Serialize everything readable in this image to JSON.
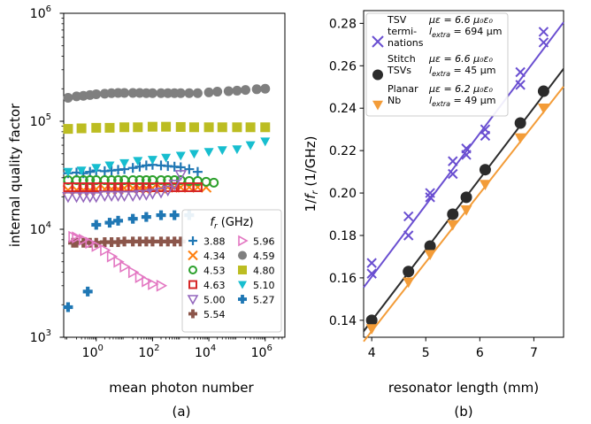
{
  "chart_data": [
    {
      "type": "scatter",
      "panel_label": "(a)",
      "xlabel": "mean photon number",
      "ylabel": "internal quality factor",
      "xscale": "log",
      "yscale": "log",
      "xlim": [
        0.07,
        5000000
      ],
      "ylim": [
        1000,
        1000000
      ],
      "x_ticks": [
        {
          "value": 1,
          "base": "10",
          "exp": "0"
        },
        {
          "value": 100,
          "base": "10",
          "exp": "2"
        },
        {
          "value": 10000,
          "base": "10",
          "exp": "4"
        },
        {
          "value": 1000000,
          "base": "10",
          "exp": "6"
        }
      ],
      "y_ticks": [
        {
          "value": 1000,
          "base": "10",
          "exp": "3"
        },
        {
          "value": 10000,
          "base": "10",
          "exp": "4"
        },
        {
          "value": 100000,
          "base": "10",
          "exp": "5"
        },
        {
          "value": 1000000,
          "base": "10",
          "exp": "6"
        }
      ],
      "legend": {
        "title_main": "f",
        "title_sub": "r",
        "title_rest": " (GHz)",
        "placement": "lower-right",
        "columns": 2
      },
      "series": [
        {
          "name": "3.88",
          "marker": "plus",
          "color": "#1f77b4",
          "x": [
            0.1,
            0.2,
            0.35,
            0.6,
            1,
            2,
            3.5,
            6,
            10,
            20,
            35,
            60,
            100,
            200,
            350,
            600,
            1000,
            2000,
            4000
          ],
          "y": [
            33000,
            33500,
            33000,
            34000,
            35000,
            34500,
            35000,
            35500,
            36000,
            37000,
            38000,
            39000,
            39500,
            39000,
            38500,
            38000,
            37500,
            36000,
            34000
          ]
        },
        {
          "name": "4.34",
          "marker": "x",
          "color": "#ff7f0e",
          "x": [
            0.1,
            0.2,
            0.35,
            0.6,
            1,
            2,
            3.5,
            6,
            10,
            20,
            35,
            60,
            100,
            200,
            350,
            600,
            1000,
            2000,
            4000,
            8000
          ],
          "y": [
            23000,
            23000,
            23000,
            23000,
            23500,
            23500,
            23500,
            23500,
            24000,
            24000,
            24000,
            24000,
            24000,
            24000,
            24500,
            24500,
            24500,
            24500,
            24500,
            24500
          ]
        },
        {
          "name": "4.53",
          "marker": "circle-open",
          "color": "#2ca02c",
          "x": [
            0.1,
            0.2,
            0.35,
            0.6,
            1,
            2,
            3.5,
            6,
            10,
            20,
            35,
            60,
            100,
            200,
            350,
            600,
            1000,
            2000,
            4000,
            8000,
            15000
          ],
          "y": [
            28500,
            28500,
            28500,
            28500,
            28500,
            28500,
            28500,
            28500,
            28500,
            28500,
            28500,
            28500,
            28500,
            28500,
            28500,
            28500,
            28500,
            28000,
            28000,
            27500,
            27000
          ]
        },
        {
          "name": "4.59",
          "marker": "circle",
          "color": "#7f7f7f",
          "x": [
            0.1,
            0.2,
            0.35,
            0.6,
            1,
            2,
            3.5,
            6,
            10,
            20,
            35,
            60,
            100,
            200,
            350,
            600,
            1000,
            2000,
            4000,
            10000,
            20000,
            50000,
            100000,
            200000,
            500000,
            1000000
          ],
          "y": [
            165000,
            170000,
            172000,
            175000,
            178000,
            180000,
            182000,
            183000,
            183000,
            183000,
            183000,
            182000,
            182000,
            182000,
            182000,
            182000,
            182000,
            182000,
            182000,
            185000,
            188000,
            190000,
            192000,
            195000,
            198000,
            200000
          ]
        },
        {
          "name": "4.63",
          "marker": "square-open",
          "color": "#d62728",
          "x": [
            0.1,
            0.2,
            0.35,
            0.6,
            1,
            2,
            3.5,
            6,
            10,
            20,
            35,
            60,
            100,
            200,
            350,
            600,
            1000,
            2000,
            4000
          ],
          "y": [
            24500,
            24500,
            24500,
            24500,
            24500,
            24500,
            24500,
            24500,
            24500,
            24500,
            24500,
            24500,
            24500,
            24500,
            24500,
            24500,
            24500,
            24500,
            24500
          ]
        },
        {
          "name": "4.80",
          "marker": "square",
          "color": "#bcbd22",
          "x": [
            0.1,
            0.3,
            1,
            3,
            10,
            30,
            100,
            300,
            1000,
            3000,
            10000,
            30000,
            100000,
            300000,
            1000000
          ],
          "y": [
            85000,
            86000,
            87000,
            87000,
            88000,
            88000,
            89000,
            89000,
            88500,
            88000,
            88000,
            88000,
            88000,
            88000,
            88000
          ]
        },
        {
          "name": "5.00",
          "marker": "triangle-down-open",
          "color": "#9467bd",
          "x": [
            0.1,
            0.2,
            0.35,
            0.6,
            1,
            2,
            3.5,
            6,
            10,
            20,
            35,
            60,
            100,
            200,
            350,
            600,
            1000
          ],
          "y": [
            20000,
            20000,
            20000,
            20000,
            20000,
            20500,
            20500,
            20500,
            20500,
            20500,
            21000,
            21000,
            21500,
            22000,
            23000,
            26000,
            32000
          ]
        },
        {
          "name": "5.10",
          "marker": "triangle-down",
          "color": "#17becf",
          "x": [
            0.1,
            0.3,
            1,
            3,
            10,
            30,
            100,
            300,
            1000,
            3000,
            10000,
            30000,
            100000,
            300000,
            1000000
          ],
          "y": [
            34000,
            35000,
            37000,
            39000,
            41000,
            43000,
            44000,
            46000,
            48000,
            50000,
            52000,
            54000,
            55000,
            60000,
            65000
          ]
        },
        {
          "name": "5.27",
          "marker": "plus-thick",
          "color": "#1f77b4",
          "x": [
            0.1,
            0.5,
            1,
            3,
            6,
            20,
            60,
            200,
            600,
            2000
          ],
          "y": [
            1900,
            2650,
            11000,
            11500,
            12000,
            12500,
            13000,
            13500,
            13500,
            13500
          ]
        },
        {
          "name": "5.54",
          "marker": "plus-thick",
          "color": "#8c564b",
          "x": [
            0.15,
            0.2,
            0.35,
            0.6,
            1,
            2,
            3.5,
            6,
            10,
            20,
            35,
            60,
            100,
            200,
            350,
            600,
            1000
          ],
          "y": [
            7500,
            7500,
            7500,
            7500,
            7500,
            7600,
            7600,
            7600,
            7700,
            7700,
            7700,
            7700,
            7700,
            7700,
            7700,
            7700,
            7700
          ]
        },
        {
          "name": "5.96",
          "marker": "triangle-right-open",
          "color": "#e377c2",
          "x": [
            0.15,
            0.2,
            0.35,
            0.6,
            1,
            2,
            3.5,
            6,
            10,
            20,
            35,
            60,
            100,
            200
          ],
          "y": [
            8500,
            8400,
            8000,
            7500,
            7000,
            6400,
            5600,
            5000,
            4500,
            4000,
            3600,
            3300,
            3100,
            3000
          ]
        }
      ]
    },
    {
      "type": "scatter",
      "panel_label": "(b)",
      "xlabel": "resonator length (mm)",
      "ylabel_main": "1/f",
      "ylabel_sub": "r",
      "ylabel_rest": " (1/GHz)",
      "xlim": [
        3.85,
        7.55
      ],
      "ylim": [
        0.132,
        0.286
      ],
      "x_ticks": [
        "4",
        "5",
        "6",
        "7"
      ],
      "y_ticks": [
        "0.14",
        "0.16",
        "0.18",
        "0.20",
        "0.22",
        "0.24",
        "0.26",
        "0.28"
      ],
      "legend": {
        "placement": "top-left"
      },
      "series": [
        {
          "name_lines": [
            "TSV",
            "termi-",
            "nations"
          ],
          "marker": "x",
          "color": "#6a4fd1",
          "ann1": "με = 6.6 μ₀ε₀",
          "ann2_main": "l",
          "ann2_sub": "extra",
          "ann2_rest": " = 694 μm",
          "x": [
            4.0,
            4.0,
            4.68,
            4.68,
            5.08,
            5.08,
            5.5,
            5.5,
            5.75,
            5.75,
            6.1,
            6.1,
            6.75,
            6.75,
            7.18,
            7.18
          ],
          "y": [
            0.162,
            0.167,
            0.18,
            0.189,
            0.198,
            0.2,
            0.209,
            0.215,
            0.218,
            0.221,
            0.227,
            0.23,
            0.251,
            0.257,
            0.271,
            0.276
          ],
          "fit": [
            [
              3.85,
              0.1555
            ],
            [
              7.55,
              0.2805
            ]
          ]
        },
        {
          "name_lines": [
            "Stitch",
            "TSVs"
          ],
          "marker": "circle",
          "color": "#2b2b2b",
          "ann1": "με = 6.6 μ₀ε₀",
          "ann2_main": "l",
          "ann2_sub": "extra",
          "ann2_rest": " = 45 μm",
          "x": [
            4.0,
            4.68,
            5.08,
            5.5,
            5.75,
            6.1,
            6.75,
            7.18
          ],
          "y": [
            0.14,
            0.163,
            0.175,
            0.19,
            0.198,
            0.211,
            0.233,
            0.248
          ],
          "fit": [
            [
              3.85,
              0.1348
            ],
            [
              7.55,
              0.2586
            ]
          ]
        },
        {
          "name_lines": [
            "Planar",
            "Nb"
          ],
          "marker": "triangle-down",
          "color": "#f39c38",
          "ann1": "με = 6.2 μ₀ε₀",
          "ann2_main": "l",
          "ann2_sub": "extra",
          "ann2_rest": " = 49 μm",
          "x": [
            4.0,
            4.68,
            5.08,
            5.5,
            5.75,
            6.1,
            6.75,
            7.18
          ],
          "y": [
            0.136,
            0.158,
            0.171,
            0.185,
            0.192,
            0.204,
            0.226,
            0.24
          ],
          "fit": [
            [
              3.85,
              0.13
            ],
            [
              7.55,
              0.2502
            ]
          ]
        }
      ]
    }
  ]
}
